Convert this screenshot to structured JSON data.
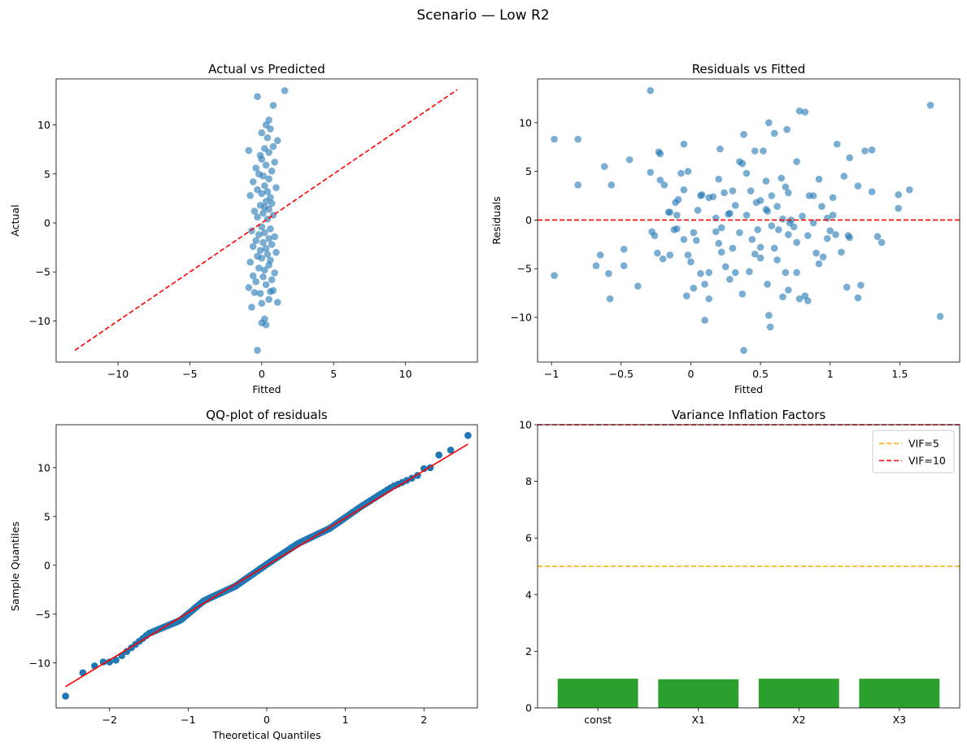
{
  "figure": {
    "title": "Scenario — Low R2"
  },
  "colors": {
    "scatter": "#1f77b4",
    "refline": "#ff0000",
    "vif5": "#ffa500",
    "vif10": "#ff0000",
    "bar": "#2ca02c"
  },
  "chart_data": [
    {
      "id": "avp",
      "type": "scatter",
      "title": "Actual vs Predicted",
      "xlabel": "Fitted",
      "ylabel": "Actual",
      "xlim": [
        -14.3,
        15.0
      ],
      "ylim": [
        -14.2,
        14.7
      ],
      "xticks": [
        -10,
        -5,
        0,
        5,
        10
      ],
      "yticks": [
        -10,
        -5,
        0,
        5,
        10
      ],
      "reference_line": {
        "from": [
          -13.0,
          -13.0
        ],
        "to": [
          13.6,
          13.6
        ]
      },
      "points": [
        [
          -0.3,
          -13.0
        ],
        [
          0.3,
          -10.4
        ],
        [
          0.0,
          -10.2
        ],
        [
          0.2,
          -9.8
        ],
        [
          1.1,
          -8.1
        ],
        [
          -0.7,
          -8.6
        ],
        [
          0.0,
          -8.2
        ],
        [
          0.5,
          -7.8
        ],
        [
          -0.1,
          -7.2
        ],
        [
          0.6,
          -7.0
        ],
        [
          -0.5,
          -7.1
        ],
        [
          0.8,
          -6.9
        ],
        [
          -0.9,
          -6.6
        ],
        [
          0.3,
          -6.3
        ],
        [
          -0.4,
          -6.0
        ],
        [
          0.7,
          -5.8
        ],
        [
          0.1,
          -5.5
        ],
        [
          -0.6,
          -5.4
        ],
        [
          0.9,
          -5.1
        ],
        [
          0.2,
          -4.8
        ],
        [
          -0.2,
          -4.6
        ],
        [
          0.5,
          -4.3
        ],
        [
          -0.8,
          -4.0
        ],
        [
          0.6,
          -3.8
        ],
        [
          0.0,
          -3.6
        ],
        [
          -0.3,
          -3.4
        ],
        [
          0.4,
          -3.2
        ],
        [
          1.0,
          -3.0
        ],
        [
          -0.1,
          -2.8
        ],
        [
          0.3,
          -2.6
        ],
        [
          -0.6,
          -2.4
        ],
        [
          0.7,
          -2.2
        ],
        [
          0.1,
          -2.0
        ],
        [
          -0.4,
          -1.8
        ],
        [
          0.5,
          -1.6
        ],
        [
          0.9,
          -1.4
        ],
        [
          -0.2,
          -1.2
        ],
        [
          0.2,
          -1.0
        ],
        [
          -0.7,
          -0.8
        ],
        [
          0.6,
          -0.6
        ],
        [
          0.0,
          -0.4
        ],
        [
          0.4,
          0.4
        ],
        [
          -0.3,
          0.6
        ],
        [
          0.8,
          0.8
        ],
        [
          0.1,
          1.0
        ],
        [
          -0.5,
          1.2
        ],
        [
          0.5,
          1.4
        ],
        [
          0.2,
          1.6
        ],
        [
          -0.1,
          1.8
        ],
        [
          0.7,
          2.0
        ],
        [
          0.3,
          2.2
        ],
        [
          -0.8,
          2.8
        ],
        [
          0.6,
          2.6
        ],
        [
          0.0,
          3.0
        ],
        [
          0.4,
          3.2
        ],
        [
          -0.3,
          3.4
        ],
        [
          1.0,
          3.6
        ],
        [
          0.2,
          3.8
        ],
        [
          -0.6,
          4.2
        ],
        [
          0.5,
          4.5
        ],
        [
          0.1,
          4.8
        ],
        [
          -0.2,
          5.0
        ],
        [
          0.7,
          5.3
        ],
        [
          -0.4,
          5.6
        ],
        [
          0.3,
          5.9
        ],
        [
          0.9,
          6.2
        ],
        [
          0.0,
          6.5
        ],
        [
          -0.1,
          6.9
        ],
        [
          0.5,
          7.2
        ],
        [
          -0.9,
          7.4
        ],
        [
          0.2,
          7.6
        ],
        [
          0.8,
          7.8
        ],
        [
          1.1,
          8.4
        ],
        [
          0.4,
          8.7
        ],
        [
          0.0,
          9.2
        ],
        [
          0.6,
          9.6
        ],
        [
          0.3,
          10.0
        ],
        [
          0.5,
          10.5
        ],
        [
          -0.3,
          12.9
        ],
        [
          0.8,
          12.0
        ],
        [
          1.6,
          13.5
        ]
      ]
    },
    {
      "id": "rvf",
      "type": "scatter",
      "title": "Residuals vs Fitted",
      "xlabel": "Fitted",
      "ylabel": "Residuals",
      "xlim": [
        -1.1,
        1.93
      ],
      "ylim": [
        -14.6,
        14.5
      ],
      "xticks": [
        -1.0,
        -0.5,
        0.0,
        0.5,
        1.0,
        1.5
      ],
      "yticks": [
        -10,
        -5,
        0,
        5,
        10
      ],
      "reference_hline": 0,
      "points": [
        [
          -0.98,
          8.3
        ],
        [
          -0.81,
          8.3
        ],
        [
          -0.98,
          -5.7
        ],
        [
          -0.81,
          3.6
        ],
        [
          -0.62,
          5.5
        ],
        [
          -0.57,
          3.6
        ],
        [
          -0.44,
          6.2
        ],
        [
          -0.65,
          -3.6
        ],
        [
          -0.68,
          -4.7
        ],
        [
          -0.59,
          -5.5
        ],
        [
          -0.58,
          -8.1
        ],
        [
          -0.48,
          -4.7
        ],
        [
          -0.48,
          -3.0
        ],
        [
          -0.38,
          -6.8
        ],
        [
          -0.29,
          13.3
        ],
        [
          -0.29,
          4.9
        ],
        [
          -0.23,
          7.0
        ],
        [
          -0.22,
          6.8
        ],
        [
          -0.22,
          4.1
        ],
        [
          -0.19,
          3.6
        ],
        [
          -0.16,
          0.8
        ],
        [
          -0.11,
          1.8
        ],
        [
          -0.09,
          2.1
        ],
        [
          -0.05,
          7.8
        ],
        [
          -0.07,
          4.8
        ],
        [
          -0.02,
          5.0
        ],
        [
          -0.28,
          -1.2
        ],
        [
          -0.26,
          -1.6
        ],
        [
          -0.24,
          -3.4
        ],
        [
          -0.2,
          -4.0
        ],
        [
          -0.15,
          -3.6
        ],
        [
          -0.12,
          -1.0
        ],
        [
          -0.1,
          0.5
        ],
        [
          -0.05,
          -2.0
        ],
        [
          -0.02,
          -3.6
        ],
        [
          0.0,
          -4.3
        ],
        [
          0.02,
          -1.3
        ],
        [
          0.04,
          -2.1
        ],
        [
          -0.03,
          -7.8
        ],
        [
          0.02,
          -7.0
        ],
        [
          0.07,
          -5.5
        ],
        [
          0.1,
          -6.6
        ],
        [
          0.1,
          -10.3
        ],
        [
          0.13,
          -5.4
        ],
        [
          0.13,
          -8.1
        ],
        [
          0.18,
          -1.2
        ],
        [
          0.2,
          -2.4
        ],
        [
          0.22,
          -3.3
        ],
        [
          0.25,
          -4.8
        ],
        [
          0.28,
          -6.1
        ],
        [
          0.3,
          -2.9
        ],
        [
          0.32,
          -5.4
        ],
        [
          0.37,
          -7.6
        ],
        [
          0.38,
          -13.4
        ],
        [
          0.42,
          -5.3
        ],
        [
          0.46,
          -3.5
        ],
        [
          0.48,
          -1.0
        ],
        [
          0.5,
          -3.9
        ],
        [
          0.55,
          -6.6
        ],
        [
          0.56,
          -9.8
        ],
        [
          0.57,
          -11.0
        ],
        [
          0.62,
          -4.1
        ],
        [
          0.68,
          -5.4
        ],
        [
          0.7,
          -7.2
        ],
        [
          0.66,
          -7.9
        ],
        [
          0.76,
          -5.4
        ],
        [
          0.78,
          -8.1
        ],
        [
          0.82,
          -7.8
        ],
        [
          0.84,
          -8.3
        ],
        [
          0.05,
          1.0
        ],
        [
          0.08,
          2.6
        ],
        [
          0.13,
          2.3
        ],
        [
          0.16,
          2.4
        ],
        [
          0.2,
          4.2
        ],
        [
          0.21,
          7.3
        ],
        [
          0.24,
          2.8
        ],
        [
          0.27,
          0.6
        ],
        [
          0.3,
          3.0
        ],
        [
          0.32,
          1.5
        ],
        [
          0.35,
          6.0
        ],
        [
          0.37,
          5.8
        ],
        [
          0.38,
          8.8
        ],
        [
          0.4,
          4.8
        ],
        [
          0.43,
          3.0
        ],
        [
          0.46,
          7.1
        ],
        [
          0.5,
          2.0
        ],
        [
          0.52,
          7.1
        ],
        [
          0.54,
          4.0
        ],
        [
          0.56,
          10.0
        ],
        [
          0.58,
          2.5
        ],
        [
          0.6,
          8.9
        ],
        [
          0.65,
          4.3
        ],
        [
          0.69,
          9.3
        ],
        [
          0.7,
          2.8
        ],
        [
          0.72,
          0.0
        ],
        [
          0.76,
          6.0
        ],
        [
          0.78,
          11.2
        ],
        [
          0.82,
          11.1
        ],
        [
          0.88,
          2.5
        ],
        [
          0.92,
          4.2
        ],
        [
          0.98,
          0.2
        ],
        [
          1.02,
          2.3
        ],
        [
          1.05,
          7.8
        ],
        [
          1.1,
          4.5
        ],
        [
          1.14,
          6.4
        ],
        [
          1.2,
          3.5
        ],
        [
          1.25,
          7.1
        ],
        [
          1.3,
          7.2
        ],
        [
          1.3,
          2.9
        ],
        [
          1.34,
          -1.7
        ],
        [
          1.37,
          -2.3
        ],
        [
          1.49,
          2.6
        ],
        [
          1.49,
          1.2
        ],
        [
          1.57,
          3.1
        ],
        [
          1.72,
          11.8
        ],
        [
          1.79,
          -9.9
        ],
        [
          1.13,
          -1.6
        ],
        [
          1.14,
          -1.8
        ],
        [
          1.12,
          -6.9
        ],
        [
          1.2,
          -8.0
        ],
        [
          1.22,
          -6.7
        ],
        [
          0.88,
          -0.3
        ],
        [
          0.9,
          -3.4
        ],
        [
          0.92,
          -4.5
        ],
        [
          0.95,
          -3.8
        ],
        [
          0.98,
          -1.9
        ],
        [
          1.0,
          -1.1
        ],
        [
          1.02,
          0.5
        ],
        [
          1.04,
          -1.5
        ],
        [
          1.08,
          -3.3
        ],
        [
          0.6,
          -2.9
        ],
        [
          0.63,
          -1.0
        ],
        [
          0.66,
          0.1
        ],
        [
          0.7,
          -1.5
        ],
        [
          0.74,
          -0.7
        ],
        [
          0.76,
          -2.3
        ],
        [
          0.8,
          0.4
        ],
        [
          0.84,
          -1.6
        ],
        [
          0.35,
          -1.3
        ],
        [
          0.4,
          0.5
        ],
        [
          0.44,
          -2.0
        ],
        [
          0.5,
          -2.8
        ],
        [
          0.55,
          0.9
        ],
        [
          0.58,
          -0.6
        ],
        [
          -0.1,
          -0.9
        ],
        [
          -0.15,
          0.8
        ],
        [
          -0.05,
          3.1
        ],
        [
          0.07,
          2.5
        ],
        [
          0.18,
          0.2
        ],
        [
          0.22,
          -0.8
        ],
        [
          0.28,
          0.7
        ],
        [
          0.47,
          1.8
        ],
        [
          0.54,
          1.1
        ],
        [
          0.62,
          1.4
        ],
        [
          0.68,
          3.4
        ],
        [
          0.71,
          -0.3
        ],
        [
          0.85,
          2.5
        ],
        [
          0.94,
          1.4
        ]
      ]
    },
    {
      "id": "qq",
      "type": "scatter",
      "title": "QQ-plot of residuals",
      "xlabel": "Theoretical Quantiles",
      "ylabel": "Sample Quantiles",
      "xlim": [
        -2.68,
        2.68
      ],
      "ylim": [
        -14.6,
        14.4
      ],
      "xticks": [
        -2,
        -1,
        0,
        1,
        2
      ],
      "yticks": [
        -10,
        -5,
        0,
        5,
        10
      ],
      "fit_line": {
        "slope": 4.85,
        "intercept": 0.0
      },
      "extremes": [
        [
          -2.56,
          -13.4
        ],
        [
          -2.34,
          -11.0
        ],
        [
          -2.19,
          -10.3
        ],
        [
          -2.08,
          -9.9
        ],
        [
          -2.0,
          -9.9
        ],
        [
          2.0,
          9.9
        ],
        [
          2.08,
          10.0
        ],
        [
          2.19,
          11.3
        ],
        [
          2.34,
          11.8
        ],
        [
          2.56,
          13.3
        ]
      ],
      "wiggle": [
        [
          -1.9,
          -0.4
        ],
        [
          -1.5,
          0.3
        ],
        [
          -1.1,
          -0.3
        ],
        [
          -0.8,
          0.25
        ],
        [
          -0.4,
          -0.2
        ],
        [
          0.0,
          0.1
        ],
        [
          0.4,
          0.3
        ],
        [
          0.8,
          -0.1
        ],
        [
          1.2,
          0.2
        ],
        [
          1.6,
          0.3
        ],
        [
          1.9,
          -0.1
        ]
      ]
    },
    {
      "id": "vif",
      "type": "bar",
      "title": "Variance Inflation Factors",
      "categories": [
        "const",
        "X1",
        "X2",
        "X3"
      ],
      "values": [
        1.03,
        1.01,
        1.03,
        1.03
      ],
      "ylim": [
        0,
        10
      ],
      "yticks": [
        0,
        2,
        4,
        6,
        8,
        10
      ],
      "hlines": [
        {
          "label": "VIF=5",
          "value": 5,
          "style": "dashed"
        },
        {
          "label": "VIF=10",
          "value": 10,
          "style": "dashed"
        }
      ],
      "legend_position": "top-right"
    }
  ]
}
